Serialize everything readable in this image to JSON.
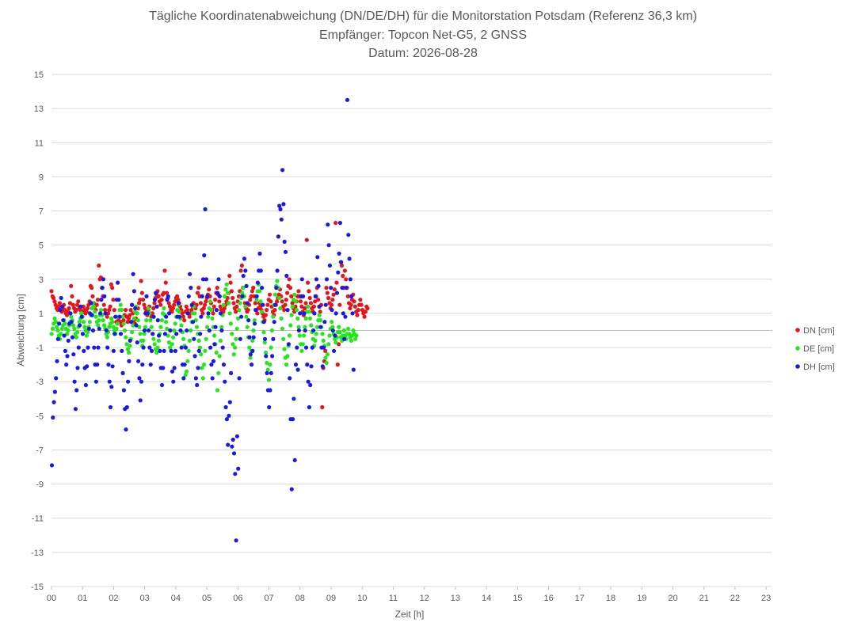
{
  "chart_data": {
    "type": "scatter",
    "title_lines": [
      "Tägliche Koordinatenabweichung (DN/DE/DH) für die Monitorstation Potsdam (Referenz 36,3 km)",
      "Empfänger: Topcon Net-G5, 2 GNSS",
      "Datum: 2026-08-28"
    ],
    "xlabel": "Zeit [h]",
    "ylabel": "Abweichung [cm]",
    "xlim": [
      0,
      23.2
    ],
    "ylim": [
      -15,
      15
    ],
    "x_ticks": [
      "00",
      "01",
      "02",
      "03",
      "04",
      "05",
      "06",
      "07",
      "08",
      "09",
      "10",
      "11",
      "12",
      "13",
      "14",
      "15",
      "16",
      "17",
      "18",
      "19",
      "20",
      "21",
      "22",
      "23"
    ],
    "y_ticks": [
      15,
      13,
      11,
      9,
      7,
      5,
      3,
      1,
      -1,
      -3,
      -5,
      -7,
      -9,
      -11,
      -13,
      -15
    ],
    "grid": "horizontal",
    "legend_position": "right",
    "sampling_interval_h": 0.0333,
    "series": [
      {
        "name": "DN [cm]",
        "color": "#e8141a",
        "values": [
          2.3,
          2.0,
          1.9,
          1.7,
          1.5,
          1.3,
          1.2,
          1.4,
          1.6,
          1.2,
          1.1,
          1.3,
          1.5,
          1.2,
          1.0,
          0.9,
          1.1,
          1.3,
          1.6,
          2.6,
          2.0,
          1.5,
          1.3,
          1.1,
          1.2,
          1.5,
          1.7,
          1.3,
          1.2,
          1.0,
          1.1,
          1.4,
          1.2,
          1.0,
          1.1,
          1.3,
          1.5,
          1.7,
          2.6,
          2.5,
          2.0,
          1.6,
          1.4,
          1.2,
          1.5,
          1.8,
          3.8,
          3.0,
          3.1,
          2.5,
          2.0,
          1.5,
          1.2,
          1.0,
          0.8,
          1.0,
          1.2,
          1.4,
          2.7,
          2.5,
          1.8,
          1.2,
          0.8,
          0.5,
          0.4,
          0.6,
          0.8,
          0.5,
          0.3,
          0.4,
          0.6,
          0.9,
          1.2,
          0.8,
          0.5,
          0.7,
          0.9,
          1.2,
          1.5,
          1.0,
          0.6,
          0.4,
          0.7,
          1.0,
          1.3,
          1.6,
          1.8,
          2.9,
          2.2,
          1.8,
          1.5,
          1.3,
          1.1,
          0.9,
          1.2,
          1.4,
          1.0,
          0.8,
          1.0,
          1.3,
          1.6,
          1.9,
          2.1,
          2.3,
          2.0,
          1.7,
          1.5,
          1.8,
          2.1,
          2.2,
          3.5,
          2.8,
          2.2,
          1.9,
          1.6,
          1.4,
          1.2,
          1.1,
          1.3,
          1.5,
          1.7,
          1.9,
          2.0,
          1.8,
          1.6,
          1.4,
          1.2,
          1.0,
          0.8,
          0.6,
          1.1,
          1.4,
          1.2,
          1.0,
          0.8,
          1.0,
          1.2,
          1.4,
          1.6,
          1.5,
          1.3,
          1.5,
          2.2,
          2.5,
          2.0,
          1.6,
          1.2,
          1.0,
          1.3,
          1.5,
          1.7,
          1.9,
          2.1,
          2.4,
          2.0,
          1.6,
          1.2,
          1.0,
          1.4,
          1.8,
          2.2,
          2.5,
          2.1,
          1.7,
          1.4,
          1.2,
          1.0,
          1.1,
          1.3,
          1.5,
          1.7,
          1.9,
          2.2,
          3.2,
          2.8,
          2.3,
          1.9,
          1.6,
          1.3,
          1.1,
          1.4,
          1.7,
          2.0,
          2.3,
          3.5,
          3.8,
          2.5,
          2.0,
          1.6,
          1.3,
          1.1,
          1.2,
          1.5,
          1.8,
          2.0,
          2.3,
          2.5,
          2.0,
          1.6,
          1.2,
          1.0,
          1.3,
          1.6,
          1.4,
          1.2,
          1.0,
          0.8,
          0.6,
          0.9,
          1.2,
          1.5,
          1.8,
          2.1,
          1.7,
          1.4,
          1.1,
          0.9,
          1.2,
          1.5,
          1.7,
          1.9,
          2.1,
          2.4,
          2.0,
          1.7,
          1.4,
          1.2,
          1.5,
          1.8,
          2.2,
          2.6,
          3.0,
          2.5,
          2.0,
          1.6,
          1.3,
          1.1,
          1.4,
          1.7,
          2.0,
          2.3,
          2.0,
          1.7,
          1.4,
          1.1,
          0.9,
          1.3,
          1.6,
          5.3,
          2.8,
          2.3,
          1.9,
          1.6,
          1.3,
          1.1,
          1.4,
          1.7,
          2.0,
          2.5,
          1.8,
          1.4,
          1.1,
          1.5,
          -4.5,
          -2.2,
          -1.8,
          -1.2,
          2.5,
          2.2,
          1.9,
          1.6,
          1.3,
          1.5,
          1.8,
          2.1,
          2.4,
          6.3,
          2.8,
          -2.0,
          -0.8,
          1.5,
          4.0,
          3.8,
          3.2,
          2.5,
          3.5,
          3.0,
          2.5,
          2.0,
          1.6,
          1.3,
          1.5,
          1.8,
          2.1,
          1.7,
          1.4,
          1.1,
          0.9,
          1.2,
          1.5,
          1.8,
          1.5,
          1.2,
          1.0,
          0.8,
          1.1,
          1.4,
          1.3
        ]
      },
      {
        "name": "DE [cm]",
        "color": "#22e81a",
        "values": [
          -0.2,
          0.1,
          0.4,
          0.7,
          0.5,
          0.2,
          0.0,
          -0.3,
          -0.5,
          -0.2,
          0.1,
          0.3,
          0.6,
          0.4,
          0.1,
          -0.2,
          0.0,
          0.3,
          0.5,
          0.8,
          0.6,
          0.3,
          0.1,
          -0.2,
          -0.4,
          -0.1,
          0.2,
          0.5,
          0.7,
          1.0,
          0.8,
          0.5,
          0.2,
          0.0,
          -0.3,
          -0.1,
          0.2,
          0.5,
          0.9,
          1.3,
          1.6,
          1.4,
          1.1,
          0.8,
          0.5,
          0.3,
          0.6,
          0.9,
          1.2,
          0.9,
          0.6,
          0.3,
          0.1,
          -0.2,
          -0.4,
          -0.1,
          0.2,
          0.4,
          0.7,
          0.5,
          0.2,
          0.0,
          -0.2,
          0.1,
          0.4,
          0.8,
          1.2,
          1.5,
          1.2,
          0.8,
          0.4,
          0.0,
          -0.4,
          -0.8,
          -1.1,
          -1.3,
          -0.9,
          -0.5,
          -0.1,
          0.3,
          0.7,
          1.1,
          1.4,
          1.0,
          0.6,
          0.2,
          -0.2,
          -0.6,
          -0.9,
          -0.6,
          -0.2,
          0.2,
          0.6,
          1.0,
          1.3,
          1.0,
          0.6,
          0.2,
          -0.2,
          -0.5,
          -0.8,
          -1.1,
          -1.3,
          -1.0,
          -0.6,
          -0.2,
          0.2,
          0.6,
          1.0,
          1.3,
          0.9,
          0.5,
          0.1,
          -0.3,
          -0.7,
          -1.0,
          -1.2,
          -0.8,
          -0.4,
          0.0,
          0.4,
          0.8,
          1.2,
          1.5,
          1.1,
          0.7,
          0.3,
          -0.1,
          -0.5,
          -0.9,
          -2.6,
          -2.4,
          -1.8,
          -1.2,
          -0.6,
          0.0,
          0.5,
          1.0,
          1.4,
          1.0,
          0.6,
          0.2,
          -0.2,
          -0.6,
          -1.0,
          -1.4,
          -2.2,
          -2.8,
          -2.0,
          -1.2,
          -0.5,
          0.2,
          0.8,
          1.3,
          1.7,
          1.2,
          0.7,
          0.2,
          -0.3,
          -0.8,
          -1.3,
          -3.5,
          -2.5,
          -1.5,
          -0.6,
          0.2,
          0.9,
          1.5,
          2.0,
          2.4,
          2.7,
          2.2,
          1.6,
          1.0,
          0.4,
          -0.2,
          -0.8,
          -1.4,
          -1.0,
          -0.5,
          0.1,
          0.7,
          1.2,
          1.6,
          1.9,
          2.2,
          2.5,
          2.0,
          1.4,
          0.8,
          0.2,
          -0.4,
          -1.0,
          -1.6,
          -1.2,
          -0.6,
          0.0,
          0.6,
          1.2,
          1.8,
          2.3,
          2.7,
          2.3,
          1.7,
          1.1,
          0.5,
          -0.1,
          -0.7,
          -1.3,
          -1.9,
          -2.3,
          -2.9,
          -2.0,
          -1.0,
          0.0,
          0.8,
          1.5,
          2.1,
          2.6,
          2.9,
          2.5,
          1.9,
          1.3,
          0.7,
          0.1,
          -0.5,
          -1.1,
          -1.6,
          -2.0,
          -1.5,
          -0.9,
          -0.3,
          0.3,
          0.9,
          1.4,
          1.8,
          2.1,
          1.7,
          1.2,
          0.7,
          0.2,
          -0.3,
          -0.8,
          -1.2,
          -0.8,
          -0.3,
          0.2,
          0.7,
          1.1,
          1.4,
          1.1,
          0.7,
          0.3,
          -0.1,
          -0.5,
          -0.9,
          -0.6,
          -0.2,
          0.2,
          0.6,
          0.9,
          0.6,
          0.2,
          -0.2,
          -0.6,
          -0.9,
          -1.6,
          -1.9,
          -1.4,
          -0.8,
          -0.3,
          0.1,
          0.5,
          0.2,
          -0.2,
          -0.5,
          -0.7,
          -0.4,
          -0.1,
          0.2,
          -0.1,
          -0.4,
          -0.6,
          -0.3,
          0.0,
          -0.3,
          -0.5,
          -0.2,
          0.1,
          -0.2,
          -0.4,
          -0.6,
          -0.3,
          0.0,
          -0.2,
          -0.5,
          -0.3
        ]
      },
      {
        "name": "DH [cm]",
        "color": "#1a1ae8",
        "values": [
          -7.9,
          -5.1,
          -4.2,
          -3.6,
          -2.8,
          -1.8,
          -0.5,
          0.4,
          1.2,
          1.9,
          1.4,
          0.6,
          -0.3,
          -1.2,
          -2.0,
          -1.5,
          -0.6,
          0.4,
          1.0,
          0.5,
          -0.4,
          -1.4,
          -3.0,
          -4.6,
          -3.5,
          -2.2,
          -1.0,
          0.3,
          1.4,
          0.8,
          -0.2,
          -1.2,
          -2.2,
          -3.2,
          -2.1,
          -1.0,
          0.1,
          1.0,
          1.6,
          0.9,
          0.0,
          -1.0,
          -2.0,
          -3.0,
          -2.0,
          -1.0,
          0.1,
          1.0,
          1.8,
          2.5,
          3.0,
          2.0,
          1.0,
          0.0,
          -1.0,
          -2.0,
          -3.0,
          -4.5,
          -3.3,
          -2.1,
          -1.2,
          -0.2,
          0.8,
          1.8,
          2.8,
          1.8,
          0.8,
          -0.2,
          -1.2,
          -2.5,
          -3.5,
          -4.6,
          -5.8,
          -4.5,
          -3.0,
          -1.8,
          -0.6,
          0.5,
          1.5,
          3.3,
          2.3,
          1.3,
          0.3,
          -0.7,
          -1.8,
          -2.8,
          -4.1,
          -3.0,
          -2.0,
          -1.0,
          0.0,
          1.0,
          2.0,
          1.0,
          0.0,
          -1.0,
          -2.0,
          -1.2,
          -0.2,
          0.8,
          1.8,
          2.2,
          1.4,
          0.6,
          -0.3,
          -1.2,
          -2.2,
          -3.2,
          -2.2,
          -1.2,
          -0.2,
          0.8,
          1.8,
          2.0,
          1.0,
          0.0,
          -1.2,
          -2.4,
          -3.0,
          -2.2,
          -1.2,
          -0.2,
          0.8,
          1.6,
          0.8,
          0.0,
          -1.0,
          -2.0,
          -2.8,
          -2.0,
          -1.0,
          0.0,
          1.0,
          2.0,
          3.3,
          2.5,
          1.5,
          0.5,
          -0.5,
          -1.5,
          -2.8,
          -3.2,
          -2.2,
          -1.2,
          -0.2,
          0.8,
          2.0,
          3.0,
          4.4,
          7.1,
          3.0,
          2.0,
          1.0,
          0.0,
          -1.0,
          -2.0,
          -2.8,
          -1.8,
          -0.8,
          0.2,
          1.2,
          2.2,
          3.0,
          2.0,
          1.0,
          0.0,
          -1.0,
          -2.0,
          -3.0,
          -4.5,
          -5.2,
          -6.7,
          -5.0,
          -4.2,
          -2.5,
          -6.8,
          -6.4,
          -7.2,
          -8.4,
          -12.3,
          -6.2,
          -8.1,
          -2.8,
          -0.5,
          0.8,
          2.0,
          3.2,
          4.2,
          3.5,
          2.6,
          1.6,
          0.6,
          -0.4,
          -1.4,
          -2.0,
          -1.2,
          -0.4,
          0.4,
          1.2,
          2.0,
          2.8,
          3.5,
          4.5,
          3.5,
          2.5,
          1.5,
          0.5,
          -0.5,
          -1.5,
          -2.5,
          -3.5,
          -4.5,
          -3.5,
          -2.5,
          -1.5,
          -0.5,
          0.5,
          1.5,
          2.5,
          3.5,
          5.5,
          7.3,
          7.1,
          6.5,
          9.4,
          7.4,
          5.2,
          4.6,
          3.2,
          1.2,
          -0.8,
          -2.8,
          -5.2,
          -9.3,
          -5.2,
          -4.0,
          -7.6,
          -2.0,
          -1.0,
          -2.3,
          0.0,
          1.0,
          2.0,
          3.0,
          2.0,
          1.0,
          0.0,
          -1.0,
          -2.0,
          -3.0,
          -4.5,
          -3.2,
          -2.1,
          -1.0,
          0.0,
          1.0,
          2.0,
          3.0,
          4.3,
          2.6,
          1.4,
          0.2,
          -1.0,
          -2.1,
          -1.0,
          0.5,
          1.5,
          3.0,
          6.2,
          5.0,
          3.8,
          2.5,
          1.2,
          0.0,
          -1.2,
          -0.3,
          1.0,
          2.2,
          3.4,
          4.5,
          6.3,
          4.0,
          2.5,
          1.0,
          -0.5,
          0.8,
          2.5,
          13.5,
          5.6,
          4.2,
          3.0,
          2.0,
          1.0,
          -2.3
        ]
      }
    ]
  }
}
